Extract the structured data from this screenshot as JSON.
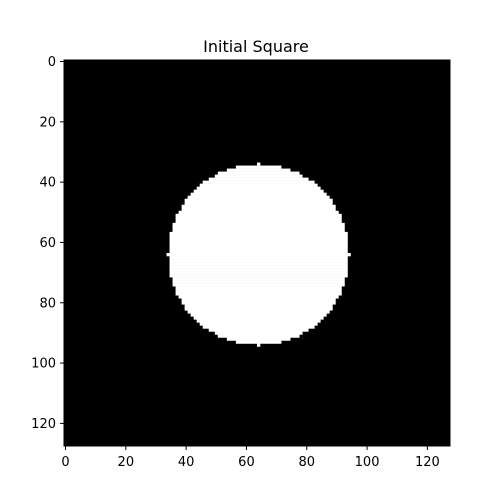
{
  "chart_data": {
    "type": "heatmap",
    "title": "Initial Square",
    "xlabel": "",
    "ylabel": "",
    "grid": false,
    "colormap": "gray",
    "background_color": "#000000",
    "foreground_color": "#ffffff",
    "image_size": [
      128,
      128
    ],
    "xlim": [
      -0.5,
      127.5
    ],
    "ylim": [
      127.5,
      -0.5
    ],
    "x_ticks": [
      0,
      20,
      40,
      60,
      80,
      100,
      120
    ],
    "y_ticks": [
      0,
      20,
      40,
      60,
      80,
      100,
      120
    ],
    "shape": {
      "kind": "disk",
      "value": 1,
      "center_x": 64,
      "center_y": 64,
      "radius": 30
    }
  }
}
